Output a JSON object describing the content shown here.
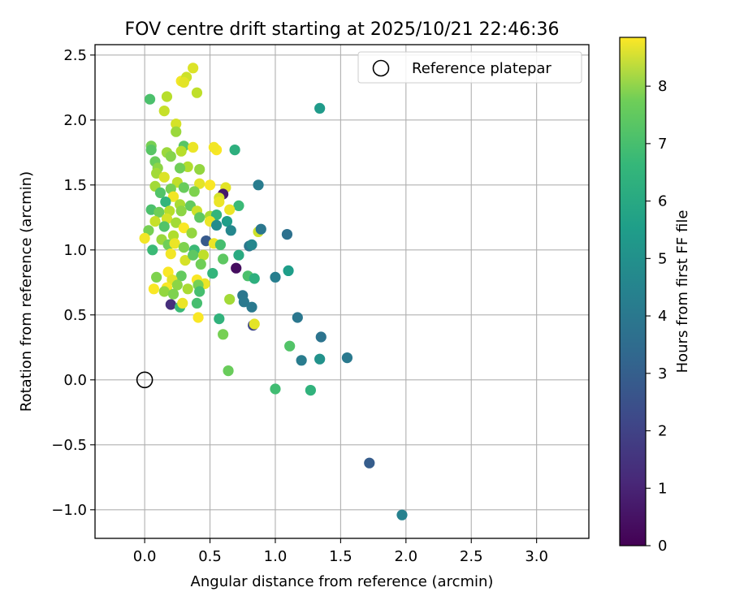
{
  "chart_data": {
    "type": "scatter",
    "title": "FOV centre drift starting at 2025/10/21 22:46:36",
    "xlabel": "Angular distance from reference (arcmin)",
    "ylabel": "Rotation from reference (arcmin)",
    "xlim": [
      -0.38,
      3.4
    ],
    "ylim": [
      -1.22,
      2.58
    ],
    "xticks": [
      0.0,
      0.5,
      1.0,
      1.5,
      2.0,
      2.5,
      3.0
    ],
    "xtick_labels": [
      "0.0",
      "0.5",
      "1.0",
      "1.5",
      "2.0",
      "2.5",
      "3.0"
    ],
    "yticks": [
      -1.0,
      -0.5,
      0.0,
      0.5,
      1.0,
      1.5,
      2.0,
      2.5
    ],
    "ytick_labels": [
      "−1.0",
      "−0.5",
      "0.0",
      "0.5",
      "1.0",
      "1.5",
      "2.0",
      "2.5"
    ],
    "grid": true,
    "legend": {
      "placement": "top-right",
      "entries": [
        "Reference platepar"
      ]
    },
    "reference_point": {
      "x": 0.0,
      "y": 0.0
    },
    "colorbar": {
      "label": "Hours from first FF file",
      "min": 0,
      "max": 8.85,
      "ticks": [
        0,
        1,
        2,
        3,
        4,
        5,
        6,
        7,
        8
      ],
      "tick_labels": [
        "0",
        "1",
        "2",
        "3",
        "4",
        "5",
        "6",
        "7",
        "8"
      ],
      "colormap": "viridis"
    },
    "points": [
      [
        0.37,
        2.4,
        8.4
      ],
      [
        0.28,
        2.3,
        8.7
      ],
      [
        0.32,
        2.33,
        8.2
      ],
      [
        0.3,
        2.29,
        8.5
      ],
      [
        0.4,
        2.21,
        8.0
      ],
      [
        0.04,
        2.16,
        6.3
      ],
      [
        0.17,
        2.18,
        7.9
      ],
      [
        0.15,
        2.07,
        8.1
      ],
      [
        0.24,
        1.97,
        8.3
      ],
      [
        0.24,
        1.91,
        7.5
      ],
      [
        0.05,
        1.8,
        7.0
      ],
      [
        0.05,
        1.77,
        6.5
      ],
      [
        0.3,
        1.8,
        6.5
      ],
      [
        0.37,
        1.79,
        8.6
      ],
      [
        0.55,
        1.77,
        8.8
      ],
      [
        0.53,
        1.79,
        8.7
      ],
      [
        0.69,
        1.77,
        5.6
      ],
      [
        0.17,
        1.75,
        7.5
      ],
      [
        0.2,
        1.72,
        7.2
      ],
      [
        0.28,
        1.76,
        7.9
      ],
      [
        0.08,
        1.68,
        6.8
      ],
      [
        0.1,
        1.63,
        7.3
      ],
      [
        0.33,
        1.64,
        7.8
      ],
      [
        0.42,
        1.62,
        7.4
      ],
      [
        0.27,
        1.63,
        6.9
      ],
      [
        0.09,
        1.59,
        7.6
      ],
      [
        0.15,
        1.56,
        8.4
      ],
      [
        0.25,
        1.52,
        8.0
      ],
      [
        0.42,
        1.51,
        8.5
      ],
      [
        0.5,
        1.5,
        8.8
      ],
      [
        0.87,
        1.5,
        3.7
      ],
      [
        0.08,
        1.49,
        7.6
      ],
      [
        0.2,
        1.47,
        7.0
      ],
      [
        0.3,
        1.48,
        6.8
      ],
      [
        0.38,
        1.45,
        7.1
      ],
      [
        0.62,
        1.48,
        8.5
      ],
      [
        0.6,
        1.43,
        0.6
      ],
      [
        0.12,
        1.44,
        6.4
      ],
      [
        0.22,
        1.41,
        8.7
      ],
      [
        0.57,
        1.4,
        8.3
      ],
      [
        0.57,
        1.37,
        8.6
      ],
      [
        0.16,
        1.37,
        5.8
      ],
      [
        0.27,
        1.35,
        7.7
      ],
      [
        0.35,
        1.34,
        6.7
      ],
      [
        0.72,
        1.34,
        6.0
      ],
      [
        0.05,
        1.31,
        6.3
      ],
      [
        0.11,
        1.29,
        6.9
      ],
      [
        0.19,
        1.3,
        7.9
      ],
      [
        0.28,
        1.3,
        7.3
      ],
      [
        0.4,
        1.3,
        8.2
      ],
      [
        0.65,
        1.31,
        8.6
      ],
      [
        0.5,
        1.26,
        7.7
      ],
      [
        0.55,
        1.27,
        5.8
      ],
      [
        0.63,
        1.22,
        4.9
      ],
      [
        0.17,
        1.24,
        8.3
      ],
      [
        0.08,
        1.22,
        8.1
      ],
      [
        0.24,
        1.21,
        7.6
      ],
      [
        0.42,
        1.25,
        6.6
      ],
      [
        0.15,
        1.18,
        6.4
      ],
      [
        0.3,
        1.17,
        8.8
      ],
      [
        0.5,
        1.22,
        8.6
      ],
      [
        0.55,
        1.19,
        4.3
      ],
      [
        0.66,
        1.15,
        4.1
      ],
      [
        0.87,
        1.14,
        8.2
      ],
      [
        0.89,
        1.16,
        3.5
      ],
      [
        1.09,
        1.12,
        3.3
      ],
      [
        0.03,
        1.15,
        7.0
      ],
      [
        0.0,
        1.09,
        8.7
      ],
      [
        0.13,
        1.08,
        7.5
      ],
      [
        0.22,
        1.11,
        7.8
      ],
      [
        0.36,
        1.13,
        7.4
      ],
      [
        0.47,
        1.07,
        2.5
      ],
      [
        0.53,
        1.05,
        8.6
      ],
      [
        0.58,
        1.04,
        6.2
      ],
      [
        0.8,
        1.03,
        3.5
      ],
      [
        0.82,
        1.04,
        4.1
      ],
      [
        0.06,
        1.0,
        6.0
      ],
      [
        0.18,
        1.04,
        6.9
      ],
      [
        0.23,
        1.05,
        8.6
      ],
      [
        0.3,
        1.02,
        7.1
      ],
      [
        0.38,
        1.0,
        6.0
      ],
      [
        0.45,
        0.96,
        8.0
      ],
      [
        0.2,
        0.97,
        8.7
      ],
      [
        0.31,
        0.92,
        8.3
      ],
      [
        0.37,
        0.96,
        6.6
      ],
      [
        0.6,
        0.93,
        6.6
      ],
      [
        0.72,
        0.96,
        5.4
      ],
      [
        0.43,
        0.89,
        6.9
      ],
      [
        0.7,
        0.86,
        0.3
      ],
      [
        1.1,
        0.84,
        4.9
      ],
      [
        0.18,
        0.83,
        8.8
      ],
      [
        0.28,
        0.8,
        6.7
      ],
      [
        0.52,
        0.82,
        5.8
      ],
      [
        0.79,
        0.8,
        6.3
      ],
      [
        0.84,
        0.78,
        5.6
      ],
      [
        1.0,
        0.79,
        3.8
      ],
      [
        0.09,
        0.79,
        7.1
      ],
      [
        0.21,
        0.77,
        8.5
      ],
      [
        0.4,
        0.77,
        8.8
      ],
      [
        0.46,
        0.74,
        8.6
      ],
      [
        0.07,
        0.7,
        8.8
      ],
      [
        0.17,
        0.71,
        8.8
      ],
      [
        0.25,
        0.73,
        7.3
      ],
      [
        0.33,
        0.7,
        7.7
      ],
      [
        0.41,
        0.73,
        7.0
      ],
      [
        0.42,
        0.68,
        6.2
      ],
      [
        0.15,
        0.68,
        7.4
      ],
      [
        0.22,
        0.66,
        7.1
      ],
      [
        0.75,
        0.65,
        3.5
      ],
      [
        0.65,
        0.62,
        7.6
      ],
      [
        0.76,
        0.6,
        3.6
      ],
      [
        0.2,
        0.58,
        1.2
      ],
      [
        0.27,
        0.56,
        6.0
      ],
      [
        0.29,
        0.59,
        8.6
      ],
      [
        0.4,
        0.59,
        6.2
      ],
      [
        0.82,
        0.56,
        3.6
      ],
      [
        0.41,
        0.48,
        8.8
      ],
      [
        0.57,
        0.47,
        5.7
      ],
      [
        1.17,
        0.48,
        3.5
      ],
      [
        0.83,
        0.42,
        1.9
      ],
      [
        0.84,
        0.43,
        8.5
      ],
      [
        0.6,
        0.35,
        7.0
      ],
      [
        1.11,
        0.26,
        6.4
      ],
      [
        1.35,
        0.33,
        3.4
      ],
      [
        1.2,
        0.15,
        3.7
      ],
      [
        1.34,
        0.16,
        4.5
      ],
      [
        1.55,
        0.17,
        3.6
      ],
      [
        0.64,
        0.07,
        6.8
      ],
      [
        1.0,
        -0.07,
        6.1
      ],
      [
        1.27,
        -0.08,
        5.7
      ],
      [
        1.72,
        -0.64,
        2.6
      ],
      [
        1.97,
        -1.04,
        3.9
      ],
      [
        1.34,
        2.09,
        4.8
      ]
    ]
  }
}
